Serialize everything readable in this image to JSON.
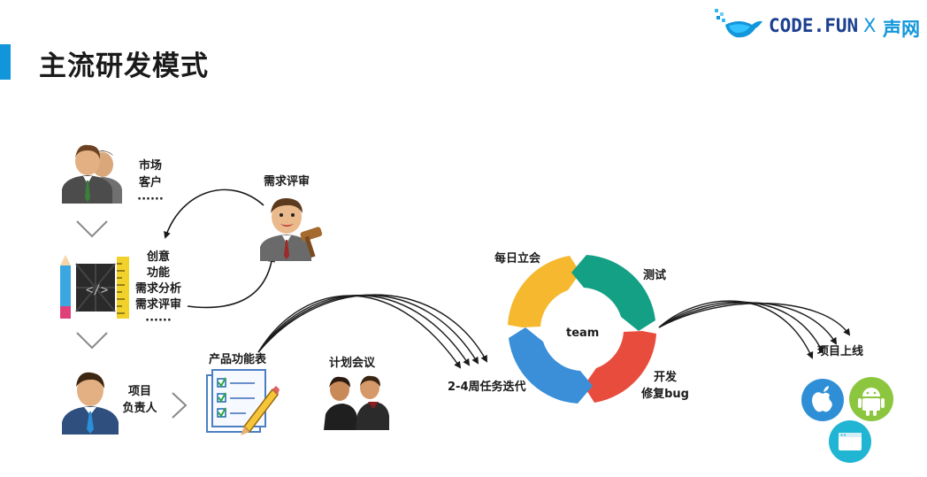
{
  "title": "主流研发模式",
  "logo": {
    "text": "CODE.FUN",
    "x": "X",
    "partner": "声网"
  },
  "colors": {
    "accent": "#1296db",
    "arc_yellow": "#f5b82e",
    "arc_green": "#14a085",
    "arc_red": "#e74c3c",
    "arc_blue": "#3a8fd8"
  },
  "steps": {
    "sources": [
      "市场",
      "客户",
      "······"
    ],
    "ideas": [
      "创意",
      "功能",
      "需求分析",
      "需求评审",
      "······"
    ],
    "review": "需求评审",
    "owner": [
      "项目",
      "负责人"
    ],
    "product_spec": "产品功能表",
    "planning": "计划会议",
    "iteration": "2-4周任务迭代",
    "launch": "项目上线"
  },
  "cycle": {
    "center": "team",
    "daily": "每日立会",
    "test": "测试",
    "dev": [
      "开发",
      "修复bug"
    ]
  },
  "icons": [
    "people-icon",
    "chevron-down-icon",
    "design-tools-icon",
    "judge-icon",
    "manager-icon",
    "chevron-right-icon",
    "checklist-pencil-icon",
    "meeting-icon",
    "apple-icon",
    "android-icon",
    "web-app-icon"
  ]
}
